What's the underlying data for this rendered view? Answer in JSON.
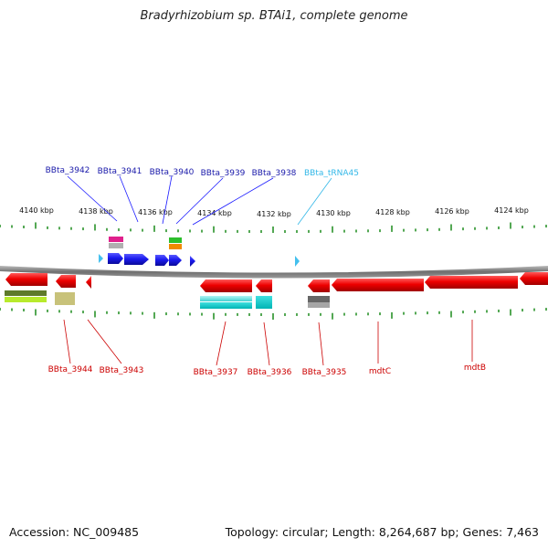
{
  "title": "Bradyrhizobium sp. BTAi1, complete genome",
  "accession_text": "Accession: NC_009485",
  "stats_text": "Topology: circular; Length: 8,264,687 bp; Genes: 7,463",
  "colors": {
    "forward_gene": "#1a1aff",
    "reverse_gene": "#e00000",
    "trna": "#44c0ee",
    "forward_label": "#1a1aaa",
    "reverse_label": "#cc0000",
    "trna_label": "#33b8e8",
    "tick": "#1a8a1a",
    "backbone": "#7a7a7a"
  },
  "ruler_top": [
    {
      "label": "4140 kbp"
    },
    {
      "label": "4138 kbp"
    },
    {
      "label": "4136 kbp"
    },
    {
      "label": "4134 kbp"
    },
    {
      "label": "4132 kbp"
    },
    {
      "label": "4130 kbp"
    },
    {
      "label": "4128 kbp"
    },
    {
      "label": "4126 kbp"
    },
    {
      "label": "4124 kbp"
    }
  ],
  "top_labels": [
    {
      "name": "BBta_3942",
      "kind": "forward"
    },
    {
      "name": "BBta_3941",
      "kind": "forward"
    },
    {
      "name": "BBta_3940",
      "kind": "forward"
    },
    {
      "name": "BBta_3939",
      "kind": "forward"
    },
    {
      "name": "BBta_3938",
      "kind": "forward"
    },
    {
      "name": "BBta_tRNA45",
      "kind": "trna"
    }
  ],
  "bottom_labels": [
    {
      "name": "BBta_3944"
    },
    {
      "name": "BBta_3943"
    },
    {
      "name": "BBta_3937"
    },
    {
      "name": "BBta_3936"
    },
    {
      "name": "BBta_3935"
    },
    {
      "name": "mdtC"
    },
    {
      "name": "mdtB"
    }
  ]
}
